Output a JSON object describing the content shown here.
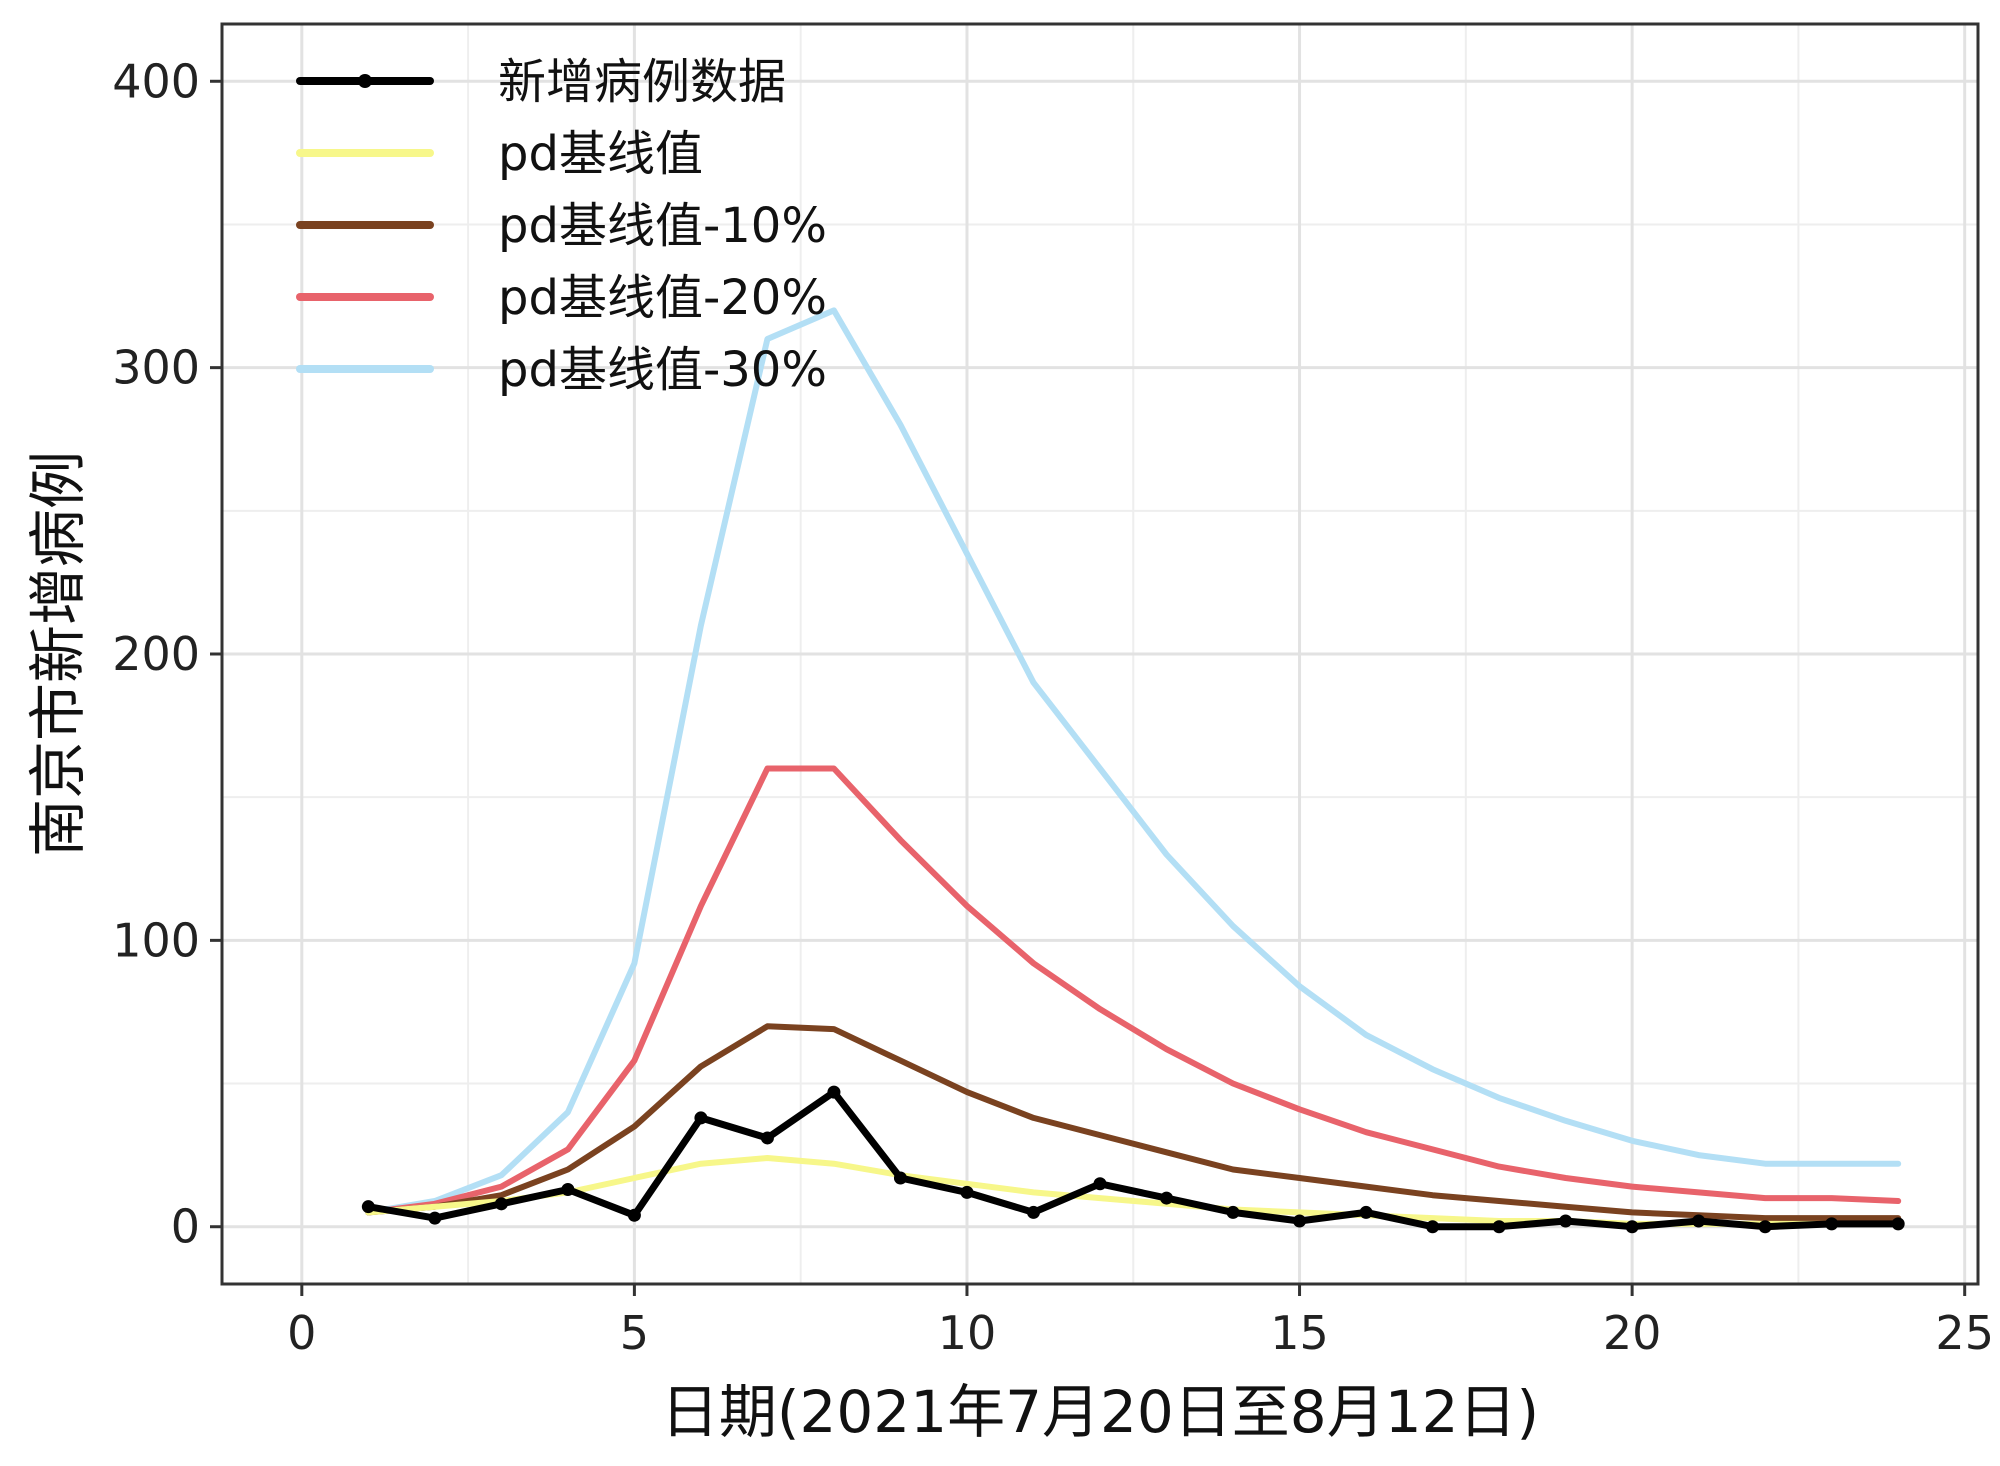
{
  "chart_data": {
    "type": "line",
    "xlabel": "日期(2021年7月20日至8月12日)",
    "ylabel": "南京市新增病例",
    "xlim": [
      -1.2,
      25.2
    ],
    "ylim": [
      -20,
      420
    ],
    "xticks": [
      0,
      5,
      10,
      15,
      20,
      25
    ],
    "yticks": [
      0,
      100,
      200,
      300,
      400
    ],
    "grid": true,
    "legend_position": "top-left",
    "x": [
      1,
      2,
      3,
      4,
      5,
      6,
      7,
      8,
      9,
      10,
      11,
      12,
      13,
      14,
      15,
      16,
      17,
      18,
      19,
      20,
      21,
      22,
      23,
      24
    ],
    "series": [
      {
        "name": "新增病例数据",
        "color": "#000000",
        "markers": true,
        "values": [
          7,
          3,
          8,
          13,
          4,
          38,
          31,
          47,
          17,
          12,
          5,
          15,
          10,
          5,
          2,
          5,
          0,
          0,
          2,
          0,
          2,
          0,
          1,
          1
        ]
      },
      {
        "name": "pd基线值",
        "color": "#f7f78a",
        "values": [
          5,
          7,
          9,
          12,
          17,
          22,
          24,
          22,
          18,
          15,
          12,
          10,
          8,
          6,
          5,
          4,
          3,
          2,
          2,
          1,
          1,
          1,
          1,
          1
        ]
      },
      {
        "name": "pd基线值-10%",
        "color": "#7a4220",
        "values": [
          5,
          7,
          11,
          20,
          35,
          56,
          70,
          69,
          58,
          47,
          38,
          32,
          26,
          20,
          17,
          14,
          11,
          9,
          7,
          5,
          4,
          3,
          3,
          3
        ]
      },
      {
        "name": "pd基线值-20%",
        "color": "#e8636b",
        "values": [
          5,
          8,
          14,
          27,
          58,
          112,
          160,
          160,
          135,
          112,
          92,
          76,
          62,
          50,
          41,
          33,
          27,
          21,
          17,
          14,
          12,
          10,
          10,
          9
        ]
      },
      {
        "name": "pd基线值-30%",
        "color": "#b3dff5",
        "values": [
          5,
          9,
          18,
          40,
          92,
          210,
          310,
          320,
          280,
          235,
          190,
          160,
          130,
          105,
          84,
          67,
          55,
          45,
          37,
          30,
          25,
          22,
          22,
          22
        ]
      }
    ]
  }
}
